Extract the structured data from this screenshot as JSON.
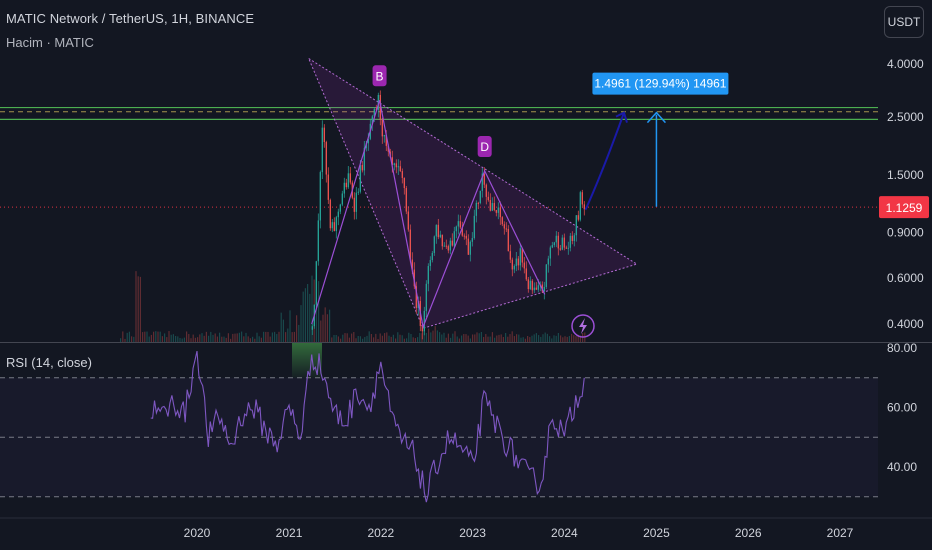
{
  "header": {
    "title": "MATIC Network / TetherUS, 1H, BINANCE",
    "volume_label": "Hacim · MATIC",
    "currency_button": "USDT"
  },
  "colors": {
    "background": "#131722",
    "triangle": "#9c27b0",
    "candle_up": "#26a69a",
    "candle_down": "#ef5350",
    "resistance_line": "#4caf50",
    "projection_arrow": "#2196f3",
    "rsi_line": "#7e57c2",
    "price_tag": "#f23645"
  },
  "chart_data": [
    {
      "type": "candlestick",
      "scale": "log",
      "yticks": [
        "4.0000",
        "2.5000",
        "1.5000",
        "0.9000",
        "0.6000",
        "0.4000"
      ],
      "ytick_values": [
        4.0,
        2.5,
        1.5,
        0.9,
        0.6,
        0.4
      ],
      "xticks": [
        "2020",
        "2021",
        "2022",
        "2023",
        "2024",
        "2025",
        "2026",
        "2027"
      ],
      "current_price": "1.1259",
      "resistance_levels": [
        2.72,
        2.45
      ],
      "dashed_level": 2.62,
      "price_path": [
        [
          "2021-04-05",
          0.38
        ],
        [
          "2021-04-20",
          0.55
        ],
        [
          "2021-05-05",
          1.2
        ],
        [
          "2021-05-18",
          2.4
        ],
        [
          "2021-06-01",
          1.6
        ],
        [
          "2021-06-20",
          0.9
        ],
        [
          "2021-07-10",
          0.95
        ],
        [
          "2021-08-01",
          1.25
        ],
        [
          "2021-09-01",
          1.45
        ],
        [
          "2021-09-25",
          1.15
        ],
        [
          "2021-10-20",
          1.6
        ],
        [
          "2021-11-15",
          2.0
        ],
        [
          "2021-12-27",
          2.9
        ],
        [
          "2022-01-20",
          2.0
        ],
        [
          "2022-02-15",
          1.6
        ],
        [
          "2022-03-20",
          1.5
        ],
        [
          "2022-04-10",
          1.35
        ],
        [
          "2022-05-12",
          0.6
        ],
        [
          "2022-06-18",
          0.39
        ],
        [
          "2022-07-20",
          0.7
        ],
        [
          "2022-08-15",
          0.95
        ],
        [
          "2022-09-15",
          0.8
        ],
        [
          "2022-10-20",
          0.85
        ],
        [
          "2022-11-10",
          1.05
        ],
        [
          "2022-12-20",
          0.78
        ],
        [
          "2023-01-25",
          1.15
        ],
        [
          "2023-02-18",
          1.55
        ],
        [
          "2023-03-15",
          1.12
        ],
        [
          "2023-04-20",
          1.05
        ],
        [
          "2023-05-25",
          0.88
        ],
        [
          "2023-06-15",
          0.6
        ],
        [
          "2023-07-15",
          0.75
        ],
        [
          "2023-08-20",
          0.55
        ],
        [
          "2023-09-15",
          0.52
        ],
        [
          "2023-10-15",
          0.55
        ],
        [
          "2023-11-15",
          0.82
        ],
        [
          "2023-12-15",
          0.85
        ],
        [
          "2024-01-10",
          0.78
        ],
        [
          "2024-02-05",
          0.82
        ],
        [
          "2024-03-01",
          1.05
        ],
        [
          "2024-03-14",
          1.28
        ],
        [
          "2024-03-22",
          1.12
        ]
      ],
      "triangle": [
        [
          "2021-03-20",
          4.2
        ],
        [
          "2024-10-15",
          0.68
        ],
        [
          "2022-06-18",
          0.385
        ]
      ],
      "pivot_labels": [
        {
          "label": "B",
          "date": "2021-12-27",
          "price": 2.9
        },
        {
          "label": "D",
          "date": "2023-02-18",
          "price": 1.55
        }
      ],
      "pattern_path": [
        [
          "2021-04-01",
          0.4
        ],
        [
          "2021-12-27",
          2.9
        ],
        [
          "2022-06-18",
          0.39
        ],
        [
          "2023-02-18",
          1.55
        ],
        [
          "2023-10-15",
          0.52
        ]
      ],
      "projection": {
        "label": "1.4961 (129.94%) 14961",
        "start_date": "2025-01-01",
        "start_price": 1.13,
        "end_price": 2.6
      },
      "curved_arrow": {
        "from_date": "2024-03-25",
        "from_price": 1.1,
        "to_date": "2024-08-25",
        "to_price": 2.6
      }
    },
    {
      "type": "line",
      "title": "RSI (14, close)",
      "yticks": [
        "80.00",
        "60.00",
        "40.00"
      ],
      "ytick_values": [
        80,
        60,
        40
      ],
      "bands": [
        70,
        50,
        30
      ],
      "x": [
        "2019-07-01",
        "2019-08-15",
        "2019-10-01",
        "2019-11-15",
        "2020-01-01",
        "2020-02-15",
        "2020-04-01",
        "2020-05-15",
        "2020-07-01",
        "2020-08-15",
        "2020-10-01",
        "2020-11-15",
        "2021-01-01",
        "2021-02-15",
        "2021-04-01",
        "2021-05-15",
        "2021-07-01",
        "2021-08-15",
        "2021-10-01",
        "2021-11-15",
        "2022-01-01",
        "2022-02-15",
        "2022-04-01",
        "2022-05-15",
        "2022-07-01",
        "2022-08-15",
        "2022-10-01",
        "2022-11-15",
        "2023-01-01",
        "2023-02-15",
        "2023-04-01",
        "2023-05-15",
        "2023-07-01",
        "2023-08-15",
        "2023-10-01",
        "2023-11-15",
        "2024-01-01",
        "2024-02-15",
        "2024-03-20"
      ],
      "values": [
        60,
        57,
        62,
        58,
        80,
        50,
        57,
        47,
        58,
        60,
        52,
        48,
        60,
        50,
        78,
        72,
        58,
        55,
        66,
        60,
        75,
        55,
        48,
        44,
        30,
        42,
        50,
        46,
        40,
        62,
        55,
        48,
        42,
        36,
        35,
        58,
        50,
        62,
        70
      ]
    }
  ]
}
